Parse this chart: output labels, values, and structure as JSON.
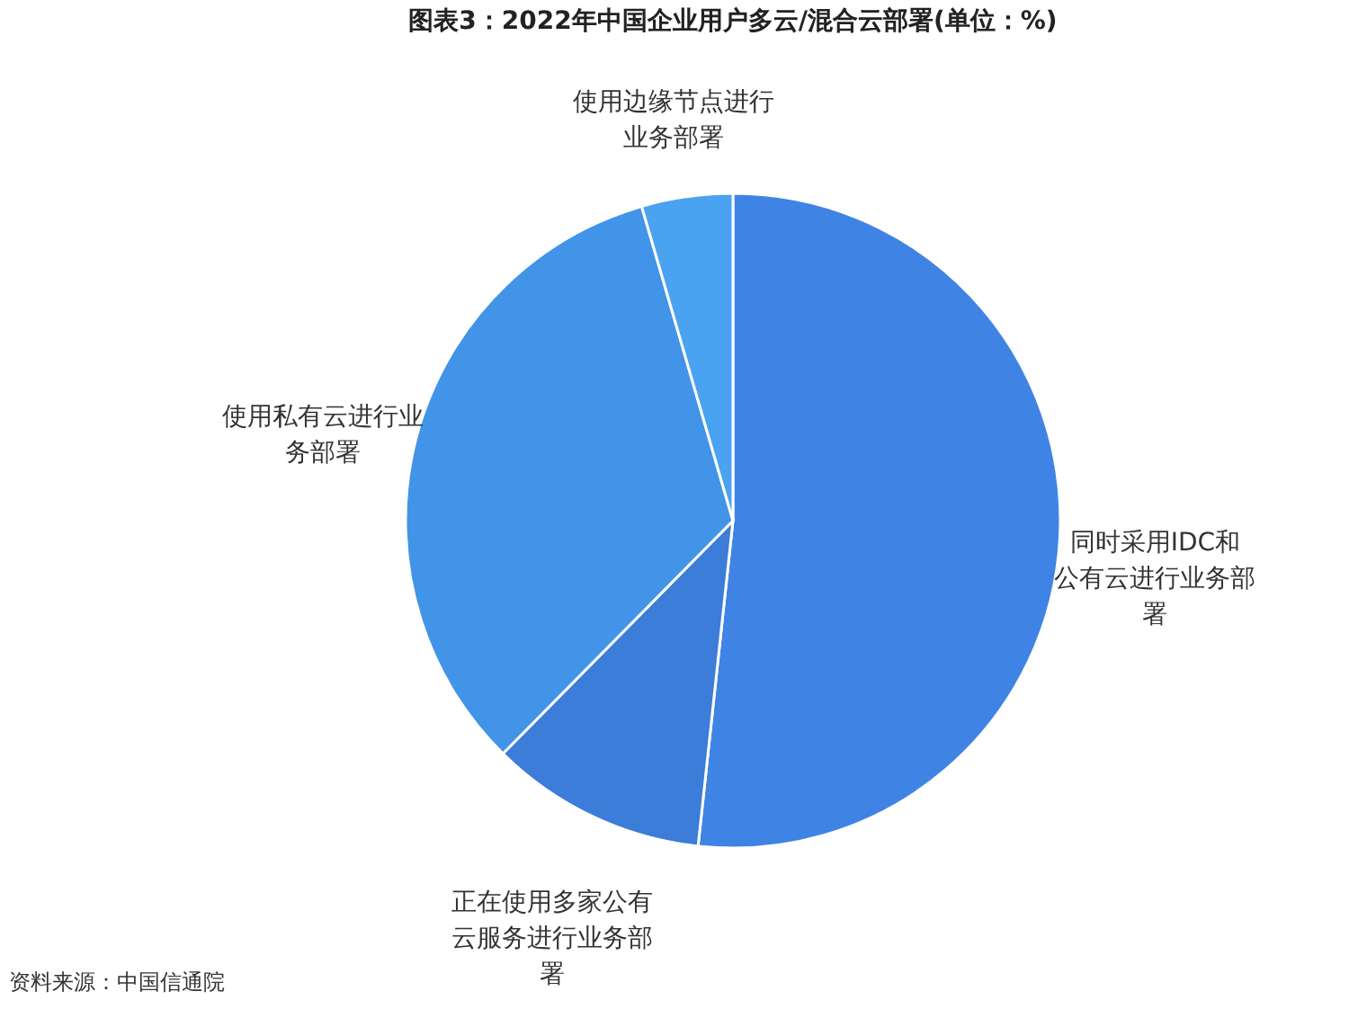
{
  "chart_data": {
    "type": "pie",
    "title": "图表3：2022年中国企业用户多云/混合云部署(单位：%)",
    "categories": [
      "同时采用IDC和公有云进行业务部署",
      "正在使用多家公有云服务进行业务部署",
      "使用私有云进行业务部署",
      "使用边缘节点进行业务部署"
    ],
    "values": [
      51.7,
      10.7,
      33.1,
      4.5
    ],
    "colors": [
      "#3f84e5",
      "#3b7dd8",
      "#4194e8",
      "#4aa3f0"
    ],
    "annotations": [
      "资料来源：中国信通院"
    ],
    "legend": false
  }
}
